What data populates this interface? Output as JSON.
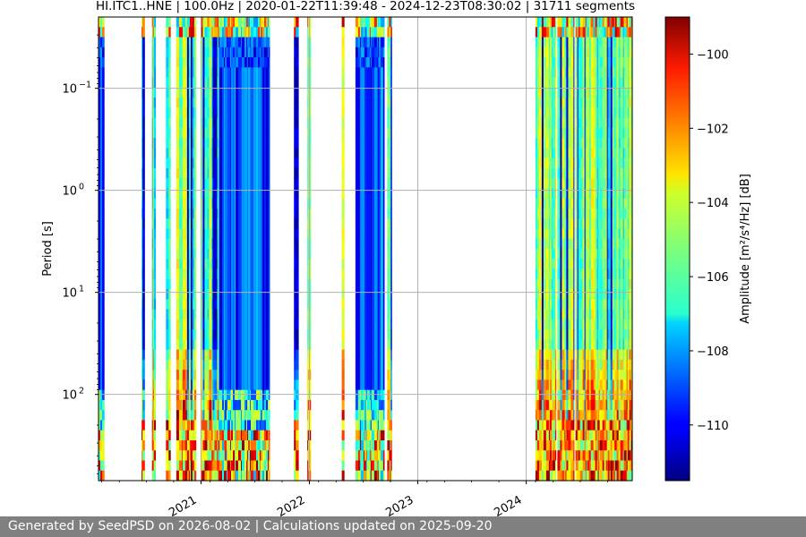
{
  "chart_data": {
    "type": "heatmap",
    "title": "HI.ITC1..HNE | 100.0Hz | 2020-01-22T11:39:48 - 2024-12-23T08:30:02 | 31711 segments",
    "xlabel": "",
    "ylabel": "Period [s]",
    "x_range": [
      "2020-01-22",
      "2024-12-23"
    ],
    "x_tick_labels": [
      "2021",
      "2022",
      "2023",
      "2024"
    ],
    "x_ticks": [
      "2021-01-01",
      "2022-01-01",
      "2023-01-01",
      "2024-01-01"
    ],
    "y_scale": "log",
    "y_inverted": true,
    "y_range": [
      0.02,
      700
    ],
    "y_ticks": [
      0.1,
      1,
      10,
      100
    ],
    "y_tick_labels": [
      {
        "base": "10",
        "exp": "−1"
      },
      {
        "base": "10",
        "exp": "0"
      },
      {
        "base": "10",
        "exp": "1"
      },
      {
        "base": "10",
        "exp": "2"
      }
    ],
    "grid": true,
    "colorbar": {
      "label": "Amplitude [m²/s⁴/Hz] [dB]",
      "range": [
        -111.5,
        -99
      ],
      "ticks": [
        -100,
        -102,
        -104,
        -106,
        -108,
        -110
      ],
      "tick_labels": [
        "−100",
        "−102",
        "−104",
        "−106",
        "−108",
        "−110"
      ],
      "colormap": "jet"
    },
    "data_coverage": [
      {
        "start": "2020-01-22",
        "end": "2020-02-10",
        "level": "low"
      },
      {
        "start": "2020-06-15",
        "end": "2020-06-25",
        "level": "mixed"
      },
      {
        "start": "2020-07-20",
        "end": "2020-08-01",
        "level": "mixed"
      },
      {
        "start": "2020-09-05",
        "end": "2020-09-20",
        "level": "mixed"
      },
      {
        "start": "2020-10-10",
        "end": "2020-12-15",
        "level": "mixed"
      },
      {
        "start": "2021-01-01",
        "end": "2021-03-01",
        "level": "mixed"
      },
      {
        "start": "2021-03-01",
        "end": "2021-08-20",
        "level": "low"
      },
      {
        "start": "2021-11-10",
        "end": "2021-11-25",
        "level": "mixed"
      },
      {
        "start": "2021-12-25",
        "end": "2022-01-05",
        "level": "mixed"
      },
      {
        "start": "2022-04-20",
        "end": "2022-04-28",
        "level": "mixed"
      },
      {
        "start": "2022-06-05",
        "end": "2022-09-10",
        "level": "low"
      },
      {
        "start": "2022-09-20",
        "end": "2022-10-05",
        "level": "mixed"
      },
      {
        "start": "2024-02-01",
        "end": "2024-04-10",
        "level": "mixed"
      },
      {
        "start": "2024-04-15",
        "end": "2024-06-10",
        "level": "mixed"
      },
      {
        "start": "2024-06-15",
        "end": "2024-12-23",
        "level": "mixed"
      }
    ]
  },
  "footer": {
    "text": "Generated by SeedPSD on 2026-08-02 | Calculations updated on 2025-09-20"
  }
}
